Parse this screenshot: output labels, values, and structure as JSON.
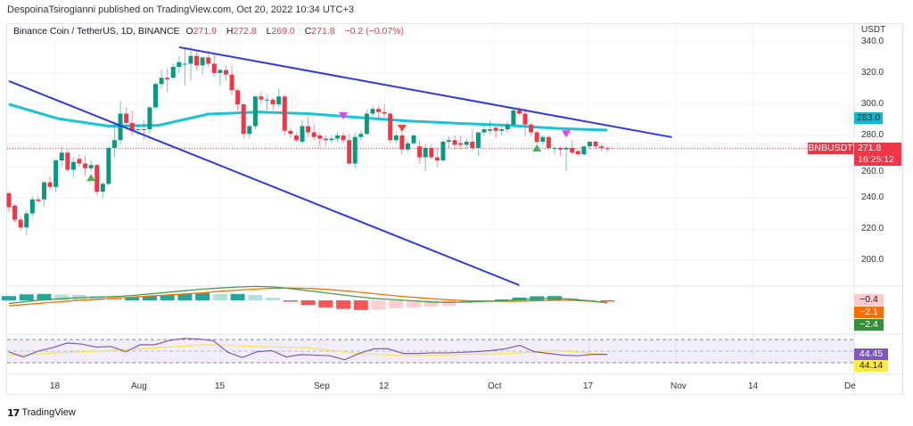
{
  "header": {
    "published": "DespoinaTsirogianni published on TradingView.com, Oct 20, 2022 10:34 UTC+3"
  },
  "legend": {
    "symbol": "Binance Coin / TetherUS, 1D, BINANCE",
    "open_prefix": "O",
    "open": "271.9",
    "high_prefix": "H",
    "high": "272.8",
    "low_prefix": "L",
    "low": "269.0",
    "close_prefix": "C",
    "close": "271.8",
    "change": "−0.2 (−0.07%)"
  },
  "price_axis": {
    "unit": "USDT",
    "ticks": [
      "340.0",
      "320.0",
      "300.0",
      "280.0",
      "260.0",
      "240.0",
      "220.0",
      "200.0"
    ],
    "ma_label": "283.0",
    "symbol_tag": "BNBUSDT",
    "last_price": "271.8",
    "countdown": "16:25:12"
  },
  "macd_labels": {
    "histogram": "−0.4",
    "signal": "−2.1",
    "macd": "−2.4"
  },
  "rsi_labels": {
    "rsi": "44.45",
    "rsi_ma": "44.14"
  },
  "time_axis": {
    "ticks": [
      "18",
      "Aug",
      "15",
      "Sep",
      "12",
      "Oct",
      "17",
      "Nov",
      "14",
      "De"
    ]
  },
  "footer": {
    "brand": "TradingView",
    "logo": "TV"
  },
  "colors": {
    "up": "#089981",
    "down": "#f23645",
    "ma": "#00bcd4",
    "trendline": "#2d38e8",
    "macd": "#43a047",
    "signal": "#ff6d00",
    "rsi": "#7e57c2",
    "rsi_ma": "#fbe34a",
    "marker_up": "#4caf50",
    "marker_down_pink": "#e040fb",
    "marker_down_red": "#f44336"
  },
  "chart_data": {
    "type": "candlestick",
    "interval": "1D",
    "ylim": [
      180,
      345
    ],
    "y_ticks": [
      340,
      320,
      300,
      280,
      260,
      240,
      220,
      200
    ],
    "x_ticks": [
      "18",
      "Aug",
      "15",
      "Sep",
      "12",
      "Oct",
      "17",
      "Nov",
      "14",
      "De"
    ],
    "grid": true,
    "candles_ohlc": [
      [
        243,
        244,
        231,
        234
      ],
      [
        235,
        236,
        224,
        226
      ],
      [
        226,
        228,
        219,
        221
      ],
      [
        221,
        232,
        216,
        230
      ],
      [
        230,
        241,
        228,
        239
      ],
      [
        239,
        241,
        237,
        238
      ],
      [
        239,
        251,
        235,
        250
      ],
      [
        250,
        254,
        245,
        247
      ],
      [
        247,
        265,
        244,
        264
      ],
      [
        264,
        273,
        260,
        269
      ],
      [
        269,
        271,
        257,
        258
      ],
      [
        258,
        266,
        253,
        263
      ],
      [
        265,
        268,
        260,
        262
      ],
      [
        262,
        267,
        254,
        259
      ],
      [
        259,
        264,
        257,
        261
      ],
      [
        261,
        262,
        242,
        244
      ],
      [
        244,
        250,
        240,
        249
      ],
      [
        249,
        273,
        248,
        272
      ],
      [
        272,
        287,
        266,
        277
      ],
      [
        277,
        302,
        274,
        294
      ],
      [
        294,
        298,
        286,
        288
      ],
      [
        288,
        296,
        280,
        283
      ],
      [
        284,
        287,
        280,
        284
      ],
      [
        284,
        290,
        277,
        284
      ],
      [
        284,
        299,
        281,
        298
      ],
      [
        298,
        314,
        297,
        313
      ],
      [
        313,
        322,
        310,
        317
      ],
      [
        317,
        323,
        308,
        316
      ],
      [
        317,
        326,
        316,
        324
      ],
      [
        324,
        331,
        320,
        327
      ],
      [
        326,
        336,
        312,
        326
      ],
      [
        326,
        337,
        315,
        331
      ],
      [
        331,
        334,
        322,
        325
      ],
      [
        325,
        331,
        319,
        330
      ],
      [
        330,
        334,
        324,
        326
      ],
      [
        326,
        333,
        318,
        320
      ],
      [
        320,
        323,
        312,
        322
      ],
      [
        322,
        325,
        315,
        319
      ],
      [
        319,
        325,
        306,
        309
      ],
      [
        309,
        310,
        296,
        300
      ],
      [
        300,
        301,
        278,
        281
      ],
      [
        281,
        287,
        278,
        286
      ],
      [
        286,
        305,
        284,
        305
      ],
      [
        305,
        308,
        300,
        303
      ],
      [
        303,
        306,
        296,
        303
      ],
      [
        303,
        304,
        296,
        300
      ],
      [
        300,
        310,
        298,
        305
      ],
      [
        305,
        306,
        280,
        283
      ],
      [
        283,
        285,
        278,
        281
      ],
      [
        280,
        282,
        276,
        277
      ],
      [
        276,
        290,
        274,
        286
      ],
      [
        286,
        292,
        279,
        282
      ],
      [
        282,
        287,
        277,
        279
      ],
      [
        280,
        282,
        273,
        278
      ],
      [
        278,
        280,
        273,
        277
      ],
      [
        277,
        280,
        275,
        278
      ],
      [
        278,
        282,
        276,
        280
      ],
      [
        280,
        282,
        275,
        277
      ],
      [
        277,
        281,
        261,
        262
      ],
      [
        262,
        282,
        259,
        279
      ],
      [
        279,
        283,
        277,
        281
      ],
      [
        281,
        296,
        280,
        294
      ],
      [
        294,
        299,
        292,
        297
      ],
      [
        297,
        299,
        291,
        295
      ],
      [
        295,
        300,
        292,
        294
      ],
      [
        294,
        295,
        275,
        277
      ],
      [
        277,
        282,
        275,
        280
      ],
      [
        280,
        282,
        268,
        271
      ],
      [
        271,
        277,
        269,
        275
      ],
      [
        275,
        281,
        274,
        280
      ],
      [
        273,
        277,
        262,
        266
      ],
      [
        266,
        274,
        257,
        272
      ],
      [
        272,
        274,
        265,
        266
      ],
      [
        266,
        272,
        260,
        264
      ],
      [
        264,
        277,
        263,
        276
      ],
      [
        276,
        279,
        272,
        277
      ],
      [
        277,
        280,
        271,
        274
      ],
      [
        275,
        280,
        271,
        274
      ],
      [
        274,
        278,
        271,
        276
      ],
      [
        276,
        284,
        270,
        272
      ],
      [
        272,
        282,
        267,
        282
      ],
      [
        282,
        287,
        280,
        284
      ],
      [
        283,
        290,
        281,
        284
      ],
      [
        285,
        286,
        278,
        283
      ],
      [
        283,
        286,
        280,
        284
      ],
      [
        284,
        289,
        282,
        287
      ],
      [
        287,
        297,
        286,
        296
      ],
      [
        296,
        298,
        293,
        294
      ],
      [
        294,
        298,
        279,
        287
      ],
      [
        287,
        288,
        280,
        282
      ],
      [
        282,
        283,
        275,
        276
      ],
      [
        276,
        280,
        274,
        279
      ],
      [
        279,
        280,
        271,
        272
      ],
      [
        272,
        273,
        268,
        272
      ],
      [
        272,
        273,
        267,
        271
      ],
      [
        271,
        273,
        257,
        272
      ],
      [
        272,
        277,
        268,
        269
      ],
      [
        270,
        271,
        267,
        268
      ],
      [
        268,
        273,
        267,
        273
      ],
      [
        273,
        276,
        271,
        276
      ],
      [
        276,
        277,
        271,
        273
      ],
      [
        273,
        274,
        270,
        272
      ],
      [
        271.9,
        272.8,
        269.0,
        271.8
      ]
    ],
    "moving_average": [
      300,
      290.7,
      286,
      286.5,
      293.7,
      295,
      294,
      291.6,
      289.3,
      287.8,
      286.5,
      284.5,
      283.4
    ],
    "trendlines": [
      {
        "from": {
          "date": "2022-08-08",
          "price": 336.6
        },
        "to": {
          "date": "2022-10-31",
          "price": 278.9
        }
      },
      {
        "from": {
          "date": "2022-07-10",
          "price": 314.9
        },
        "to": {
          "date": "2022-10-05",
          "price": 184
        }
      }
    ],
    "markers": [
      {
        "date": "2022-07-24",
        "price": 253,
        "shape": "triangle-up",
        "color": "marker_up"
      },
      {
        "date": "2022-10-08",
        "price": 272,
        "shape": "triangle-up",
        "color": "marker_up"
      },
      {
        "date": "2022-09-05",
        "price": 292.6,
        "shape": "triangle-down",
        "color": "marker_down_pink"
      },
      {
        "date": "2022-10-13",
        "price": 281,
        "shape": "triangle-down",
        "color": "marker_down_pink"
      },
      {
        "date": "2022-09-15",
        "price": 284.6,
        "shape": "triangle-down",
        "color": "marker_down_red"
      }
    ],
    "macd": {
      "macd": [
        -3,
        -1,
        0.5,
        1.5,
        2.5,
        3,
        3.5,
        4.5,
        6,
        7.5,
        9,
        10.5,
        11.5,
        12.5,
        13,
        12.5,
        11,
        9,
        7,
        5,
        3,
        1.5,
        0.5,
        -0.5,
        -1.5,
        -2,
        -1.5,
        -1,
        -0.5,
        0.5,
        1.5,
        2,
        1,
        -0.5,
        -2.4
      ],
      "signal": [
        -5,
        -3.8,
        -2.5,
        -1.2,
        0,
        1,
        2,
        3,
        4,
        5,
        6,
        7,
        8.5,
        9.5,
        10.5,
        11.3,
        11.5,
        11.2,
        10.3,
        9,
        7.5,
        5.8,
        4.2,
        2.8,
        1.5,
        0.5,
        -0.3,
        -0.7,
        -0.9,
        -0.8,
        -0.4,
        0,
        0,
        -0.8,
        -2.1
      ]
    },
    "rsi": {
      "levels": [
        70,
        50,
        30
      ],
      "rsi": [
        48.5,
        40,
        50,
        56,
        64,
        62,
        57,
        58,
        49,
        61,
        61,
        68.5,
        72,
        71,
        68,
        48,
        39,
        49,
        51,
        40,
        44,
        43,
        42,
        35,
        46,
        54,
        54,
        46,
        46,
        47,
        47,
        48,
        49,
        51,
        54,
        60,
        49,
        46,
        43,
        42,
        44.5,
        44.45
      ],
      "rsi_ma": [
        43,
        47,
        51,
        56,
        61,
        58,
        56,
        46,
        42,
        44,
        46,
        51,
        44.14
      ]
    }
  }
}
